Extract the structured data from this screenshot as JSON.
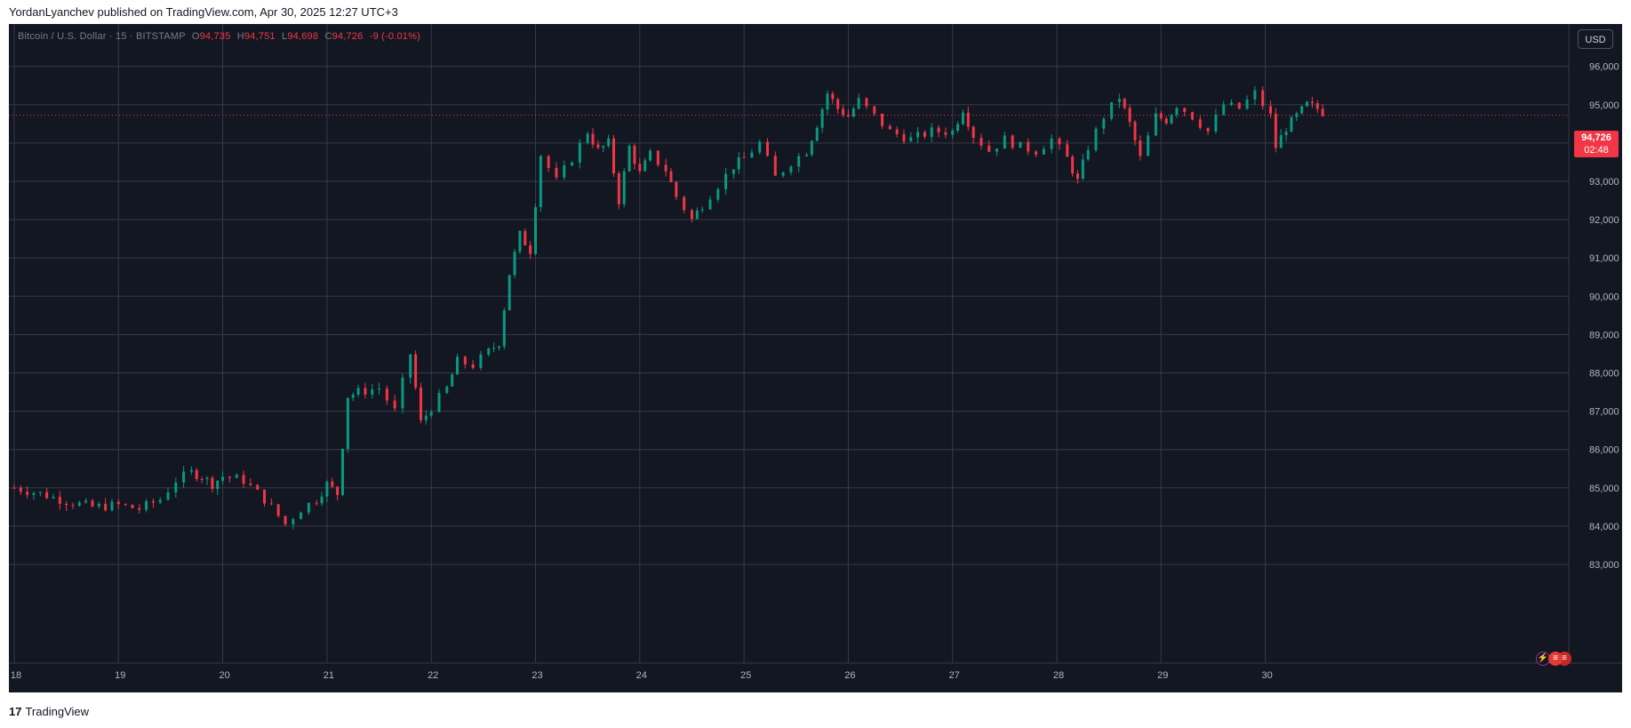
{
  "header": {
    "publisher_line": "YordanLyanchev published on TradingView.com, Apr 30, 2025 12:27 UTC+3"
  },
  "legend": {
    "symbol": "Bitcoin / U.S. Dollar · 15 · BITSTAMP",
    "open_key": "O",
    "open": "94,735",
    "high_key": "H",
    "high": "94,751",
    "low_key": "L",
    "low": "94,698",
    "close_key": "C",
    "close": "94,726",
    "change": "-9 (-0.01%)"
  },
  "currency_button": "USD",
  "last_price": {
    "price": "94,726",
    "countdown": "02:48"
  },
  "footer": {
    "logo": "17",
    "brand": "TradingView"
  },
  "colors": {
    "background": "#131722",
    "grid": "#363a45",
    "up": "#089981",
    "down": "#f23645",
    "axis_text": "#b2b5be"
  },
  "icons": [
    "lightning-icon",
    "us-flag-icon",
    "us-flag-icon"
  ],
  "chart_data": {
    "type": "candlestick",
    "instrument": "Bitcoin / U.S. Dollar",
    "exchange": "BITSTAMP",
    "interval": "15",
    "x_ticks": [
      "18",
      "19",
      "20",
      "21",
      "22",
      "23",
      "24",
      "25",
      "26",
      "27",
      "28",
      "29",
      "30"
    ],
    "y_ticks": [
      "83,000",
      "84,000",
      "85,000",
      "86,000",
      "87,000",
      "88,000",
      "89,000",
      "90,000",
      "91,000",
      "92,000",
      "93,000",
      "94,000",
      "95,000",
      "96,000"
    ],
    "ylim": [
      82850,
      96700
    ],
    "last_price": 94726,
    "grid": true,
    "series": [
      {
        "name": "Bitcoin / U.S. Dollar",
        "points": [
          [
            18.0,
            85000
          ],
          [
            18.25,
            84850
          ],
          [
            18.5,
            84650
          ],
          [
            18.75,
            84500
          ],
          [
            19.0,
            84550
          ],
          [
            19.2,
            84450
          ],
          [
            19.4,
            84700
          ],
          [
            19.55,
            85200
          ],
          [
            19.7,
            85400
          ],
          [
            19.8,
            85300
          ],
          [
            19.9,
            85100
          ],
          [
            20.0,
            85300
          ],
          [
            20.2,
            85200
          ],
          [
            20.4,
            84700
          ],
          [
            20.6,
            84050
          ],
          [
            20.75,
            84450
          ],
          [
            20.9,
            84700
          ],
          [
            21.0,
            85100
          ],
          [
            21.1,
            84850
          ],
          [
            21.2,
            87400
          ],
          [
            21.3,
            87500
          ],
          [
            21.5,
            87600
          ],
          [
            21.65,
            87000
          ],
          [
            21.8,
            88500
          ],
          [
            21.9,
            86700
          ],
          [
            22.0,
            87100
          ],
          [
            22.15,
            87600
          ],
          [
            22.25,
            88300
          ],
          [
            22.4,
            88200
          ],
          [
            22.55,
            88550
          ],
          [
            22.65,
            88800
          ],
          [
            22.75,
            90600
          ],
          [
            22.85,
            91600
          ],
          [
            22.95,
            91200
          ],
          [
            23.05,
            93700
          ],
          [
            23.2,
            93000
          ],
          [
            23.35,
            93600
          ],
          [
            23.5,
            94300
          ],
          [
            23.6,
            93800
          ],
          [
            23.7,
            94000
          ],
          [
            23.8,
            92500
          ],
          [
            23.9,
            93900
          ],
          [
            24.0,
            93200
          ],
          [
            24.1,
            93700
          ],
          [
            24.25,
            93300
          ],
          [
            24.35,
            92600
          ],
          [
            24.5,
            92000
          ],
          [
            24.6,
            92400
          ],
          [
            24.75,
            92900
          ],
          [
            24.9,
            93400
          ],
          [
            25.0,
            93600
          ],
          [
            25.15,
            94000
          ],
          [
            25.3,
            93100
          ],
          [
            25.45,
            93500
          ],
          [
            25.6,
            93800
          ],
          [
            25.7,
            94500
          ],
          [
            25.8,
            95300
          ],
          [
            25.9,
            94900
          ],
          [
            26.0,
            94700
          ],
          [
            26.1,
            95100
          ],
          [
            26.25,
            94700
          ],
          [
            26.4,
            94300
          ],
          [
            26.6,
            94100
          ],
          [
            26.8,
            94300
          ],
          [
            27.0,
            94300
          ],
          [
            27.1,
            94900
          ],
          [
            27.2,
            94200
          ],
          [
            27.35,
            93800
          ],
          [
            27.5,
            94100
          ],
          [
            27.65,
            93900
          ],
          [
            27.8,
            93800
          ],
          [
            27.95,
            94100
          ],
          [
            28.1,
            93600
          ],
          [
            28.2,
            93000
          ],
          [
            28.3,
            93900
          ],
          [
            28.45,
            94700
          ],
          [
            28.6,
            95200
          ],
          [
            28.7,
            94500
          ],
          [
            28.8,
            93600
          ],
          [
            28.95,
            94700
          ],
          [
            29.05,
            94600
          ],
          [
            29.15,
            95000
          ],
          [
            29.3,
            94700
          ],
          [
            29.45,
            94300
          ],
          [
            29.6,
            95000
          ],
          [
            29.75,
            94900
          ],
          [
            29.9,
            95300
          ],
          [
            30.05,
            94700
          ],
          [
            30.1,
            93900
          ],
          [
            30.2,
            94400
          ],
          [
            30.3,
            94700
          ],
          [
            30.4,
            95000
          ],
          [
            30.5,
            94900
          ],
          [
            30.6,
            94726
          ]
        ]
      }
    ]
  }
}
